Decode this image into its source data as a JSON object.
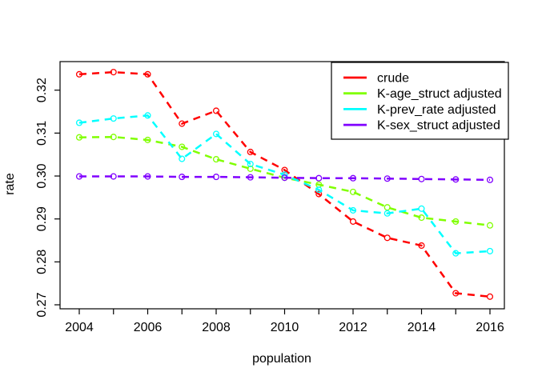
{
  "chart_data": {
    "type": "line",
    "title": "",
    "xlabel": "population",
    "ylabel": "rate",
    "x": [
      2004,
      2005,
      2006,
      2007,
      2008,
      2009,
      2010,
      2011,
      2012,
      2013,
      2014,
      2015,
      2016
    ],
    "x_ticks": [
      2004,
      2005,
      2006,
      2007,
      2008,
      2009,
      2010,
      2011,
      2012,
      2013,
      2014,
      2015,
      2016
    ],
    "x_labeled_years": [
      2004,
      2006,
      2008,
      2010,
      2012,
      2014,
      2016
    ],
    "y_ticks": [
      0.27,
      0.28,
      0.29,
      0.3,
      0.31,
      0.32
    ],
    "y_tick_labels": [
      "0.27",
      "0.28",
      "0.29",
      "0.30",
      "0.31",
      "0.32"
    ],
    "xlim": [
      2004,
      2016
    ],
    "ylim": [
      0.27,
      0.3266
    ],
    "grid": false,
    "line_style": "dashed",
    "marker": "open-circle",
    "legend_position": "top-right",
    "axis_color": "#000000",
    "background_color": "#ffffff",
    "series": [
      {
        "name": "crude",
        "color": "#FF0000",
        "values": [
          0.3237,
          0.3242,
          0.3237,
          0.3122,
          0.3152,
          0.3056,
          0.3014,
          0.2958,
          0.2894,
          0.2856,
          0.2838,
          0.2727,
          0.2719
        ]
      },
      {
        "name": "K-age_struct adjusted",
        "color": "#80FF00",
        "values": [
          0.309,
          0.3091,
          0.3084,
          0.3068,
          0.3039,
          0.3017,
          0.2996,
          0.298,
          0.2963,
          0.2927,
          0.2903,
          0.2894,
          0.2885
        ]
      },
      {
        "name": "K-prev_rate adjusted",
        "color": "#00FFFF",
        "values": [
          0.3124,
          0.3134,
          0.3141,
          0.304,
          0.3098,
          0.3028,
          0.3003,
          0.2968,
          0.292,
          0.2913,
          0.2924,
          0.282,
          0.2825
        ]
      },
      {
        "name": "K-sex_struct adjusted",
        "color": "#8000FF",
        "values": [
          0.2999,
          0.2999,
          0.2999,
          0.2998,
          0.2998,
          0.2997,
          0.2996,
          0.2995,
          0.2995,
          0.2994,
          0.2993,
          0.2992,
          0.2991
        ]
      }
    ]
  }
}
